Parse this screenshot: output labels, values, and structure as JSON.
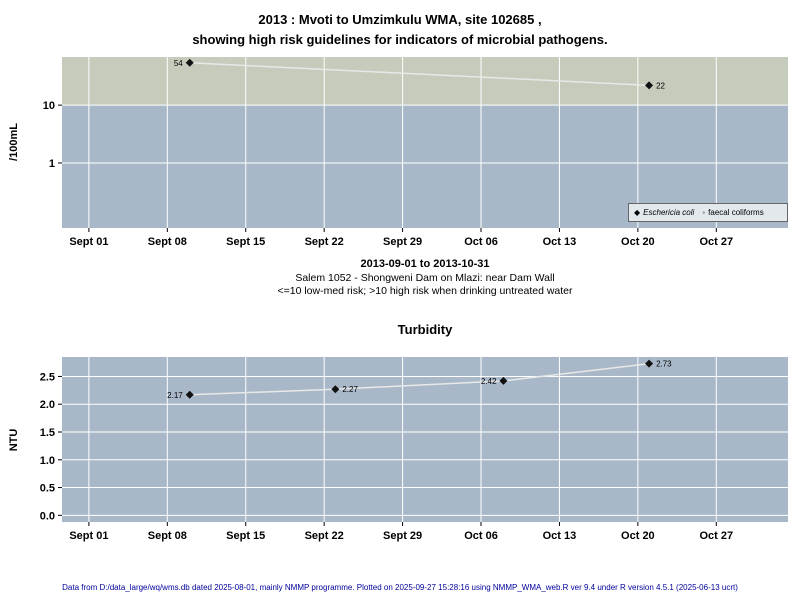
{
  "page": {
    "title_line1": "2013 : Mvoti to Umzimkulu WMA, site 102685 ,",
    "title_line2": "showing high risk guidelines for indicators of microbial pathogens.",
    "subtitle_line1": "2013-09-01 to 2013-10-31",
    "subtitle_line2": "Salem 1052 - Shongweni Dam on Mlazi: near Dam Wall",
    "subtitle_line3": "<=10 low-med risk; >10 high risk when drinking untreated water",
    "chart2_title": "Turbidity",
    "footer": "Data from D:/data_large/wq/wms.db dated 2025-08-01, mainly NMMP programme. Plotted on 2025-09-27 15:28:16 using NMMP_WMA_web.R ver 9.4 under R version 4.5.1 (2025-06-13 ucrt)"
  },
  "colors": {
    "plot_bg": "#a9b8c8",
    "high_risk_band": "#c5ccbc",
    "gridline": "#ffffff",
    "series_line": "#e8e8e8",
    "point": "#111111",
    "footer_text": "#00009c"
  },
  "chart_data": [
    {
      "id": "microbial",
      "type": "line",
      "title": "2013 : Mvoti to Umzimkulu WMA, site 102685 , showing high risk guidelines for indicators of microbial pathogens.",
      "ylabel": "/100mL",
      "xlabel": "",
      "yscale": "log",
      "ylim": [
        0.075,
        68
      ],
      "yticks": [
        1,
        10
      ],
      "ytick_labels": [
        "1",
        "10"
      ],
      "high_risk_band": {
        "from": 10,
        "to": 68
      },
      "x_domain": [
        -2.4,
        62.4
      ],
      "xticks": [
        0,
        7,
        14,
        21,
        28,
        35,
        42,
        49,
        56
      ],
      "xtick_labels": [
        "Sept 01",
        "Sept 08",
        "Sept 15",
        "Sept 22",
        "Sept 29",
        "Oct 06",
        "Oct 13",
        "Oct 20",
        "Oct 27"
      ],
      "series": [
        {
          "name": "Eschericia coli",
          "marker": "diamond",
          "x": [
            9,
            50
          ],
          "values": [
            54,
            22
          ],
          "point_labels": [
            "54",
            "22"
          ],
          "label_side": [
            "left",
            "right"
          ]
        }
      ],
      "legend": {
        "position": "bottom-right",
        "items": [
          {
            "label": "Eschericia coli",
            "marker": "diamond",
            "italic": true
          },
          {
            "label": "faecal coliforms",
            "marker": "circle",
            "italic": false
          }
        ]
      }
    },
    {
      "id": "turbidity",
      "type": "line",
      "title": "Turbidity",
      "ylabel": "NTU",
      "xlabel": "",
      "yscale": "linear",
      "ylim": [
        -0.12,
        2.85
      ],
      "yticks": [
        0.0,
        0.5,
        1.0,
        1.5,
        2.0,
        2.5
      ],
      "ytick_labels": [
        "0.0",
        "0.5",
        "1.0",
        "1.5",
        "2.0",
        "2.5"
      ],
      "x_domain": [
        -2.4,
        62.4
      ],
      "xticks": [
        0,
        7,
        14,
        21,
        28,
        35,
        42,
        49,
        56
      ],
      "xtick_labels": [
        "Sept 01",
        "Sept 08",
        "Sept 15",
        "Sept 22",
        "Sept 29",
        "Oct 06",
        "Oct 13",
        "Oct 20",
        "Oct 27"
      ],
      "series": [
        {
          "name": "Turbidity",
          "marker": "diamond",
          "x": [
            9,
            22,
            37,
            50
          ],
          "values": [
            2.17,
            2.27,
            2.42,
            2.73
          ],
          "point_labels": [
            "2.17",
            "2.27",
            "2.42",
            "2.73"
          ],
          "label_side": [
            "left",
            "right",
            "left",
            "right"
          ]
        }
      ]
    }
  ]
}
